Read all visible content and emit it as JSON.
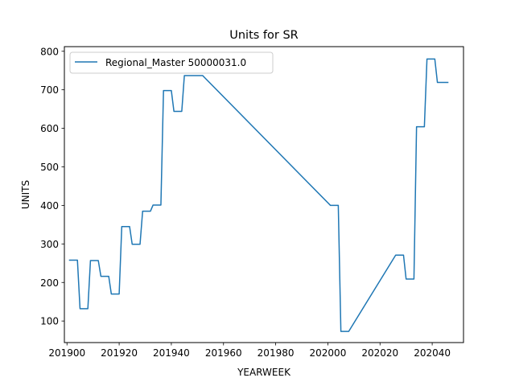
{
  "chart_data": {
    "type": "line",
    "title": "Units for SR",
    "xlabel": "YEARWEEK",
    "ylabel": "UNITS",
    "xlim": [
      201899,
      202052
    ],
    "ylim": [
      44,
      812
    ],
    "x_ticks": [
      201900,
      201920,
      201940,
      201960,
      201980,
      202000,
      202020,
      202040
    ],
    "y_ticks": [
      100,
      200,
      300,
      400,
      500,
      600,
      700,
      800
    ],
    "grid": false,
    "legend": {
      "position": "top-left",
      "entries": [
        "Regional_Master 50000031.0"
      ]
    },
    "series": [
      {
        "name": "Regional_Master 50000031.0",
        "color": "#1f77b4",
        "x": [
          201901,
          201904,
          201905,
          201908,
          201909,
          201912,
          201913,
          201916,
          201917,
          201920,
          201921,
          201924,
          201925,
          201928,
          201929,
          201932,
          201933,
          201936,
          201937,
          201940,
          201941,
          201944,
          201945,
          201948,
          201949,
          201952,
          202001,
          202004,
          202005,
          202008,
          202026,
          202029,
          202030,
          202033,
          202034,
          202037,
          202038,
          202041,
          202042,
          202045,
          202046
        ],
        "y": [
          258,
          258,
          132,
          132,
          257,
          257,
          216,
          216,
          170,
          170,
          345,
          345,
          299,
          299,
          385,
          385,
          401,
          401,
          698,
          698,
          644,
          644,
          737,
          737,
          737,
          737,
          400,
          400,
          73,
          73,
          271,
          271,
          209,
          209,
          604,
          604,
          780,
          780,
          719,
          719,
          719
        ]
      }
    ]
  }
}
